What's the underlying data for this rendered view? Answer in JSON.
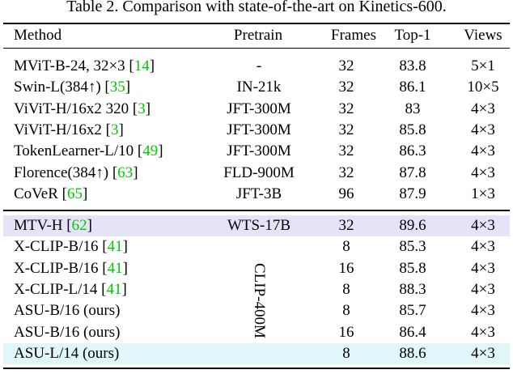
{
  "caption": "Table 2. Comparison with state-of-the-art on Kinetics-600.",
  "header": {
    "method": "Method",
    "pretrain": "Pretrain",
    "frames": "Frames",
    "top1": "Top-1",
    "views": "Views"
  },
  "cite_color": "#00c800",
  "groups": [
    {
      "rule_below": true,
      "rows": [
        {
          "method": "MViT-B-24, 32×3 [14]",
          "pretrain": "-",
          "frames": 32,
          "top1": 83.8,
          "views": "5×1"
        },
        {
          "method": "Swin-L(384↑) [35]",
          "pretrain": "IN-21k",
          "frames": 32,
          "top1": 86.1,
          "views": "10×5"
        },
        {
          "method": "ViViT-H/16x2 320 [3]",
          "pretrain": "JFT-300M",
          "frames": 32,
          "top1": 83.0,
          "views": "4×3"
        },
        {
          "method": "ViViT-H/16x2 [3]",
          "pretrain": "JFT-300M",
          "frames": 32,
          "top1": 85.8,
          "views": "4×3"
        },
        {
          "method": "TokenLearner-L/10 [49]",
          "pretrain": "JFT-300M",
          "frames": 32,
          "top1": 86.3,
          "views": "4×3"
        },
        {
          "method": "Florence(384↑) [63]",
          "pretrain": "FLD-900M",
          "frames": 32,
          "top1": 87.8,
          "views": "4×3"
        },
        {
          "method": "CoVeR [65]",
          "pretrain": "JFT-3B",
          "frames": 96,
          "top1": 87.9,
          "views": "1×3"
        }
      ]
    },
    {
      "rule_below": false,
      "rows": [
        {
          "method": "MTV-H [62]",
          "pretrain": "WTS-17B",
          "frames": 32,
          "top1": 89.6,
          "views": "4×3",
          "highlight": "#e6e2f8"
        }
      ]
    },
    {
      "rule_below": false,
      "pretrain": "CLIP-400M",
      "rows": [
        {
          "method": "X-CLIP-B/16 [41]",
          "frames": 8,
          "top1": 85.3,
          "views": "4×3"
        },
        {
          "method": "X-CLIP-B/16 [41]",
          "frames": 16,
          "top1": 85.8,
          "views": "4×3"
        },
        {
          "method": "X-CLIP-L/14 [41]",
          "frames": 8,
          "top1": 88.3,
          "views": "4×3"
        },
        {
          "method": "ASU-B/16 (ours)",
          "frames": 8,
          "top1": 85.7,
          "views": "4×3"
        },
        {
          "method": "ASU-B/16 (ours)",
          "frames": 16,
          "top1": 86.4,
          "views": "4×3"
        },
        {
          "method": "ASU-L/14 (ours)",
          "frames": 8,
          "top1": 88.6,
          "views": "4×3",
          "highlight": "#e0f6fa"
        }
      ]
    }
  ]
}
